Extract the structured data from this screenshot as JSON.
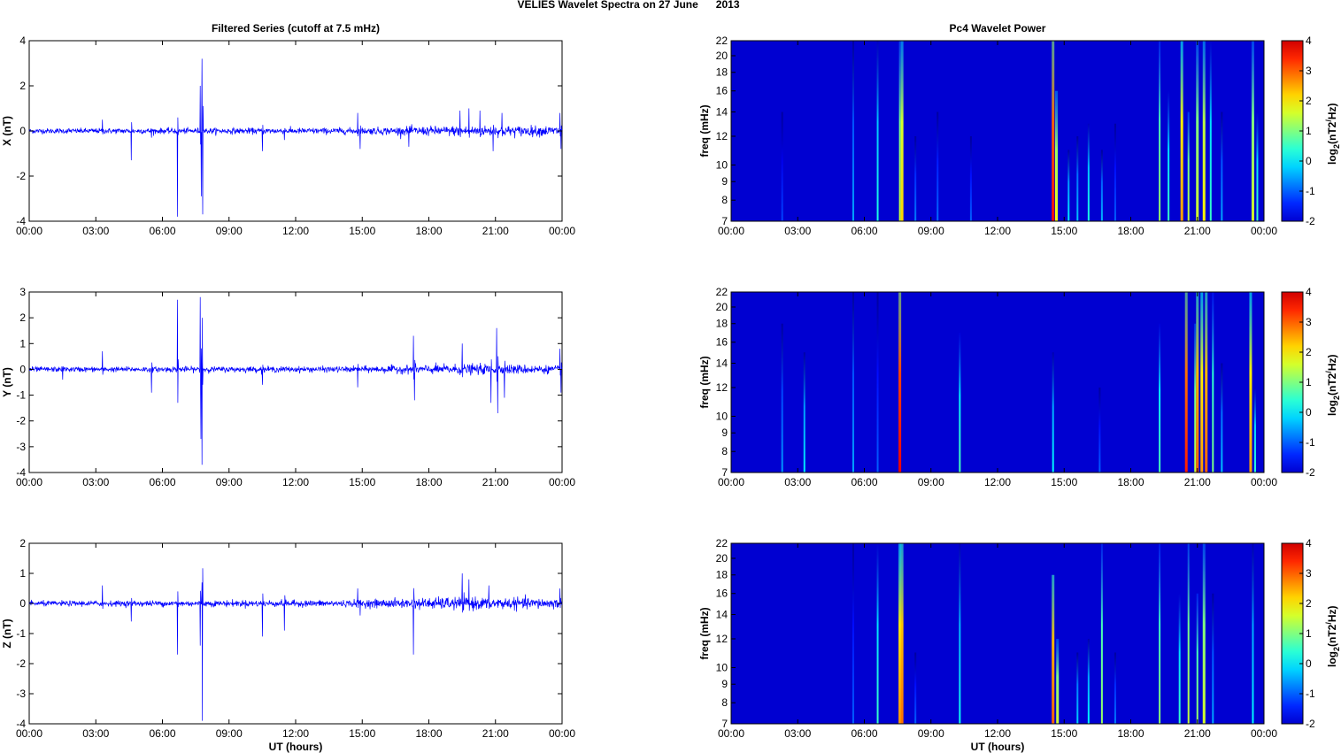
{
  "title": "VELIES Wavelet Spectra on 27 June      2013",
  "chart_data": [
    {
      "type": "line",
      "title": "Filtered Series (cutoff at 7.5 mHz)",
      "xticks": [
        "00:00",
        "03:00",
        "06:00",
        "09:00",
        "12:00",
        "15:00",
        "18:00",
        "21:00",
        "00:00"
      ],
      "xlim_hours": [
        0,
        24
      ],
      "xlabel": "UT (hours)",
      "panels": [
        {
          "ylabel": "X (nT)",
          "ylim": [
            -4,
            4
          ],
          "yticks": [
            -4,
            -2,
            0,
            2,
            4
          ],
          "noise_level": [
            [
              0,
              0.08
            ],
            [
              14.5,
              0.1
            ],
            [
              19.3,
              0.16
            ],
            [
              24,
              0.16
            ]
          ],
          "spikes": [
            [
              1.8,
              0.1
            ],
            [
              3.3,
              0.5
            ],
            [
              4.6,
              -1.3
            ],
            [
              5.5,
              -0.3
            ],
            [
              6.67,
              -3.8
            ],
            [
              6.7,
              0.6
            ],
            [
              7.7,
              2.0
            ],
            [
              7.78,
              3.2
            ],
            [
              7.82,
              -3.7
            ],
            [
              7.75,
              -2.9
            ],
            [
              10.5,
              -0.9
            ],
            [
              11.5,
              -0.4
            ],
            [
              14.8,
              0.8
            ],
            [
              14.9,
              -0.8
            ],
            [
              17.1,
              -0.7
            ],
            [
              19.4,
              0.9
            ],
            [
              19.8,
              1.0
            ],
            [
              20.3,
              0.9
            ],
            [
              20.9,
              -0.9
            ],
            [
              21.3,
              0.8
            ],
            [
              23.9,
              0.8
            ],
            [
              23.95,
              -0.8
            ]
          ]
        },
        {
          "ylabel": "Y (nT)",
          "ylim": [
            -4,
            3
          ],
          "yticks": [
            -4,
            -3,
            -2,
            -1,
            0,
            1,
            2,
            3
          ],
          "noise_level": [
            [
              0,
              0.07
            ],
            [
              14.5,
              0.08
            ],
            [
              19.3,
              0.14
            ],
            [
              21.5,
              0.14
            ],
            [
              24,
              0.1
            ]
          ],
          "spikes": [
            [
              1.5,
              -0.4
            ],
            [
              3.3,
              0.7
            ],
            [
              5.5,
              -0.9
            ],
            [
              6.67,
              2.7
            ],
            [
              6.7,
              -1.3
            ],
            [
              7.7,
              2.8
            ],
            [
              7.78,
              -3.7
            ],
            [
              7.8,
              2.0
            ],
            [
              7.74,
              -2.7
            ],
            [
              10.5,
              -0.6
            ],
            [
              14.8,
              -0.7
            ],
            [
              17.3,
              1.3
            ],
            [
              17.35,
              -1.2
            ],
            [
              19.5,
              1.0
            ],
            [
              20.8,
              -1.3
            ],
            [
              21.05,
              1.6
            ],
            [
              21.1,
              -1.7
            ],
            [
              21.4,
              -1.1
            ],
            [
              23.9,
              0.8
            ],
            [
              23.95,
              -0.9
            ]
          ]
        },
        {
          "ylabel": "Z (nT)",
          "ylim": [
            -4,
            2
          ],
          "yticks": [
            -4,
            -3,
            -2,
            -1,
            0,
            1,
            2
          ],
          "noise_level": [
            [
              0,
              0.06
            ],
            [
              14.5,
              0.08
            ],
            [
              19.3,
              0.15
            ],
            [
              24,
              0.12
            ]
          ],
          "spikes": [
            [
              3.3,
              0.6
            ],
            [
              4.6,
              -0.6
            ],
            [
              6.67,
              -1.7
            ],
            [
              6.7,
              0.4
            ],
            [
              7.7,
              -1.4
            ],
            [
              7.78,
              0.7
            ],
            [
              7.8,
              -3.9
            ],
            [
              10.5,
              -1.1
            ],
            [
              11.5,
              -0.9
            ],
            [
              14.8,
              0.5
            ],
            [
              14.9,
              -0.4
            ],
            [
              17.3,
              -1.7
            ],
            [
              19.5,
              1.0
            ],
            [
              19.8,
              0.8
            ],
            [
              20.7,
              0.6
            ],
            [
              23.9,
              0.5
            ]
          ]
        }
      ]
    },
    {
      "type": "heatmap",
      "title": "Pc4 Wavelet Power",
      "xticks": [
        "00:00",
        "03:00",
        "06:00",
        "09:00",
        "12:00",
        "15:00",
        "18:00",
        "21:00",
        "00:00"
      ],
      "xlabel": "UT (hours)",
      "ylabel": "freq (mHz)",
      "ylim": [
        7,
        22
      ],
      "yscale": "log",
      "yticks": [
        7,
        8,
        9,
        10,
        12,
        14,
        16,
        18,
        20,
        22
      ],
      "colorbar": {
        "label": "log2(nT2/Hz)",
        "range": [
          -2,
          4
        ],
        "ticks": [
          -2,
          -1,
          0,
          1,
          2,
          3,
          4
        ]
      },
      "panels": [
        {
          "component": "X",
          "streaks": [
            [
              2.3,
              -1.2,
              14
            ],
            [
              5.5,
              -0.5,
              22
            ],
            [
              6.6,
              0.3,
              22
            ],
            [
              7.6,
              1.5,
              22
            ],
            [
              7.7,
              2.2,
              22
            ],
            [
              8.3,
              -0.8,
              12
            ],
            [
              9.3,
              -0.9,
              14
            ],
            [
              10.8,
              -1,
              12
            ],
            [
              14.5,
              3.6,
              22
            ],
            [
              14.65,
              1.8,
              16
            ],
            [
              15.2,
              0,
              11
            ],
            [
              15.6,
              -0.3,
              12
            ],
            [
              16.1,
              0.3,
              13
            ],
            [
              16.7,
              -0.4,
              11
            ],
            [
              17.3,
              -1,
              13
            ],
            [
              19.3,
              1.2,
              22
            ],
            [
              19.7,
              0.5,
              16
            ],
            [
              20.3,
              2.6,
              22
            ],
            [
              20.6,
              1.5,
              14
            ],
            [
              21.0,
              1.6,
              22
            ],
            [
              21.3,
              2.0,
              22
            ],
            [
              21.6,
              0.5,
              22
            ],
            [
              22.1,
              -0.5,
              14
            ],
            [
              23.5,
              1.6,
              22
            ],
            [
              23.7,
              0.5,
              14
            ]
          ]
        },
        {
          "component": "Y",
          "streaks": [
            [
              2.3,
              -0.6,
              18
            ],
            [
              3.3,
              0,
              15
            ],
            [
              5.5,
              -0.5,
              22
            ],
            [
              6.6,
              -1,
              22
            ],
            [
              7.6,
              3.8,
              22
            ],
            [
              10.3,
              0.6,
              17
            ],
            [
              14.5,
              0.1,
              15
            ],
            [
              16.6,
              -1,
              12
            ],
            [
              19.3,
              0.6,
              18
            ],
            [
              20.5,
              3.5,
              22
            ],
            [
              20.9,
              1.5,
              18
            ],
            [
              21.0,
              3.0,
              22
            ],
            [
              21.2,
              2.6,
              22
            ],
            [
              21.4,
              3.0,
              22
            ],
            [
              21.7,
              1.0,
              22
            ],
            [
              22.1,
              -0.3,
              14
            ],
            [
              23.4,
              2.6,
              22
            ],
            [
              23.6,
              0.4,
              12
            ]
          ]
        },
        {
          "component": "Z",
          "streaks": [
            [
              5.5,
              -1,
              22
            ],
            [
              6.6,
              0.5,
              22
            ],
            [
              7.6,
              2.6,
              22
            ],
            [
              7.7,
              2.9,
              22
            ],
            [
              8.3,
              -1,
              11
            ],
            [
              10.3,
              0.2,
              22
            ],
            [
              14.5,
              3.0,
              18
            ],
            [
              14.7,
              1.6,
              12
            ],
            [
              15.6,
              -0.2,
              11
            ],
            [
              16.1,
              0.1,
              12
            ],
            [
              16.7,
              1.2,
              22
            ],
            [
              17.3,
              -0.8,
              11
            ],
            [
              19.3,
              1.1,
              22
            ],
            [
              20.2,
              0.5,
              16
            ],
            [
              20.6,
              1.5,
              22
            ],
            [
              21.0,
              1.2,
              16
            ],
            [
              21.3,
              1.6,
              22
            ],
            [
              21.7,
              -0.5,
              16
            ],
            [
              23.5,
              0.1,
              22
            ]
          ]
        }
      ]
    }
  ]
}
